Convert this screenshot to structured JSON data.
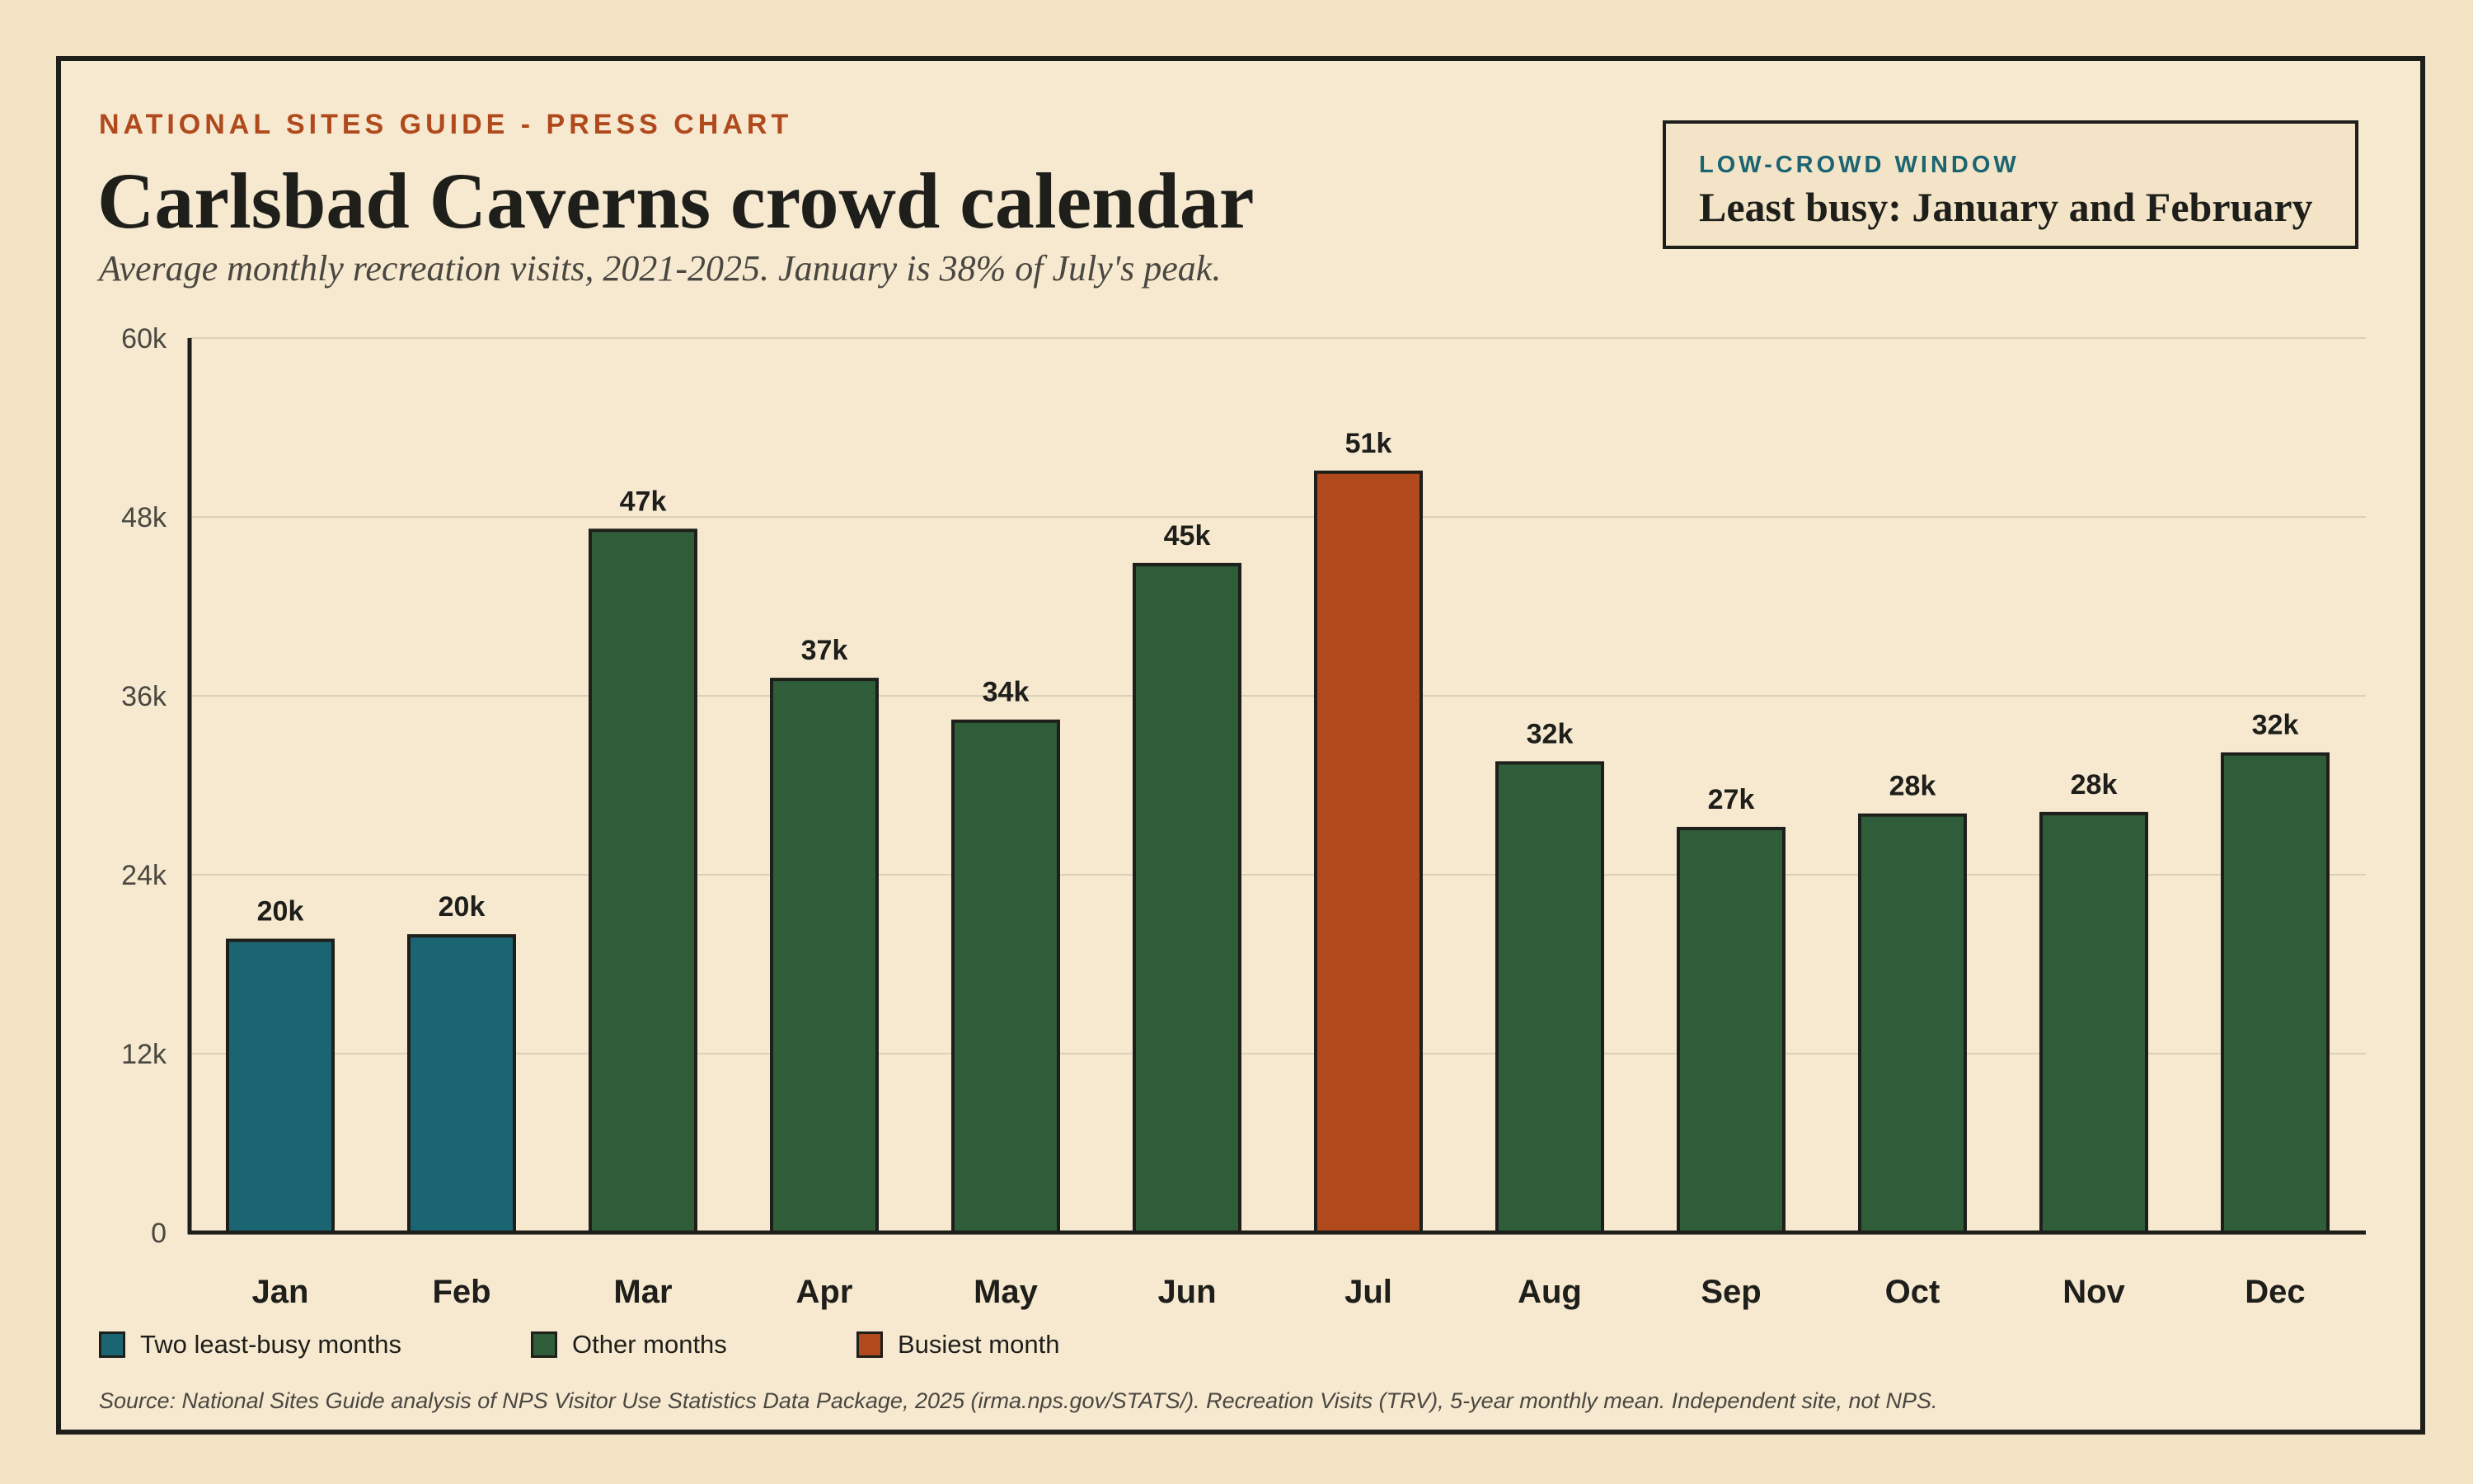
{
  "header": {
    "kicker": "NATIONAL SITES GUIDE - PRESS CHART",
    "title": "Carlsbad Caverns crowd calendar",
    "subtitle": "Average monthly recreation visits, 2021-2025. January is 38% of July's peak."
  },
  "callout": {
    "kicker": "LOW-CROWD WINDOW",
    "text": "Least busy: January and February"
  },
  "legend": [
    {
      "label": "Two least-busy months",
      "color": "#1b6573"
    },
    {
      "label": "Other months",
      "color": "#2f5d3a"
    },
    {
      "label": "Busiest month",
      "color": "#b04a1c"
    }
  ],
  "source": "Source: National Sites Guide analysis of NPS Visitor Use Statistics Data Package, 2025 (irma.nps.gov/STATS/). Recreation Visits (TRV), 5-year monthly mean. Independent site, not NPS.",
  "chart_data": {
    "type": "bar",
    "title": "Carlsbad Caverns crowd calendar",
    "categories": [
      "Jan",
      "Feb",
      "Mar",
      "Apr",
      "May",
      "Jun",
      "Jul",
      "Aug",
      "Sep",
      "Oct",
      "Nov",
      "Dec"
    ],
    "values": [
      19600,
      19900,
      47100,
      37100,
      34300,
      44800,
      51000,
      31500,
      27100,
      28000,
      28100,
      32100
    ],
    "value_labels": [
      "20k",
      "20k",
      "47k",
      "37k",
      "34k",
      "45k",
      "51k",
      "32k",
      "27k",
      "28k",
      "28k",
      "32k"
    ],
    "groups": [
      "least-busy",
      "least-busy",
      "other",
      "other",
      "other",
      "other",
      "busiest",
      "other",
      "other",
      "other",
      "other",
      "other"
    ],
    "group_colors": {
      "least-busy": "#1b6573",
      "other": "#2f5d3a",
      "busiest": "#b04a1c"
    },
    "ylim": [
      0,
      60000
    ],
    "yticks": [
      0,
      12000,
      24000,
      36000,
      48000,
      60000
    ],
    "ytick_labels": [
      "0",
      "12k",
      "24k",
      "36k",
      "48k",
      "60k"
    ],
    "grid": true,
    "legend_position": "bottom-left"
  }
}
